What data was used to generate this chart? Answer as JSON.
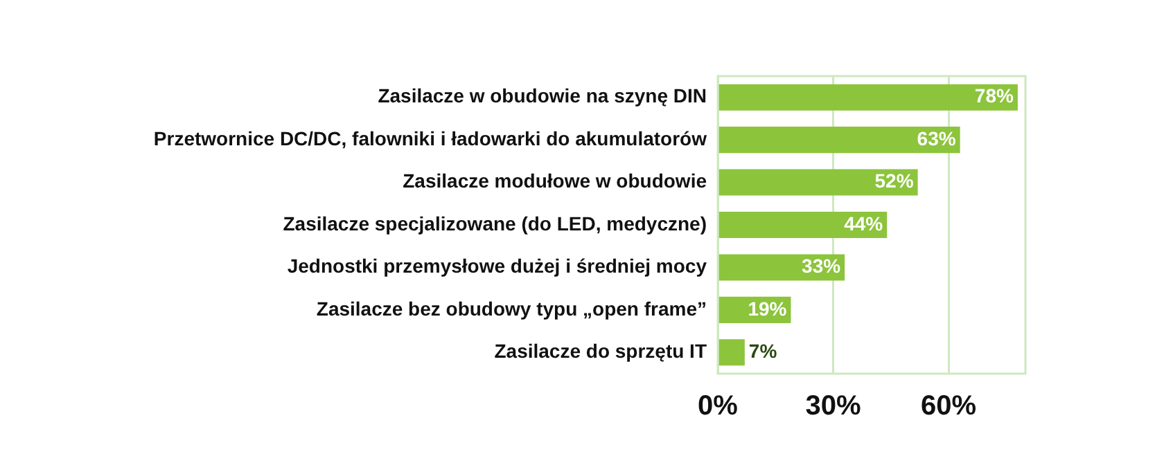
{
  "chart_data": {
    "type": "bar",
    "orientation": "horizontal",
    "categories": [
      "Zasilacze w obudowie na szynę DIN",
      "Przetwornice DC/DC, falowniki i ładowarki do akumulatorów",
      "Zasilacze modułowe w obudowie",
      "Zasilacze specjalizowane (do LED, medyczne)",
      "Jednostki przemysłowe dużej i średniej mocy",
      "Zasilacze bez obudowy typu „open frame”",
      "Zasilacze do sprzętu IT"
    ],
    "values": [
      78,
      63,
      52,
      44,
      33,
      19,
      7
    ],
    "value_labels": [
      "78%",
      "63%",
      "52%",
      "44%",
      "33%",
      "19%",
      "7%"
    ],
    "color": "#8cc43c",
    "xlim": [
      0,
      80
    ],
    "xticks": [
      {
        "value": 0,
        "label": "0%"
      },
      {
        "value": 30,
        "label": "30%"
      },
      {
        "value": 60,
        "label": "60%"
      }
    ],
    "grid": "x",
    "legend": false
  }
}
